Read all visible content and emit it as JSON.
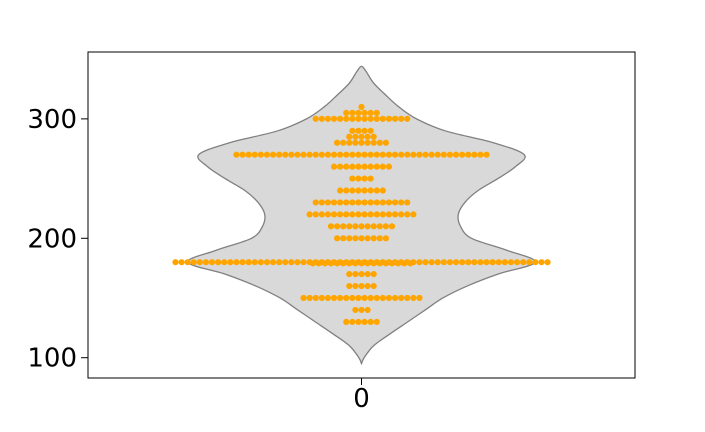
{
  "chart_data": {
    "type": "violin",
    "title": "",
    "xlabel": "",
    "ylabel": "",
    "categories": [
      "0"
    ],
    "y_ticks": [
      100,
      200,
      300
    ],
    "y_tick_labels": [
      "100",
      "200",
      "300"
    ],
    "ylim": [
      83,
      356
    ],
    "grid": false,
    "legend": "none",
    "colors": {
      "violin_fill": "#d9d9d9",
      "violin_edge": "#808080",
      "points": "#ffa500",
      "axes": "#000000"
    },
    "violin_profile": [
      {
        "y": 95,
        "half_width": 0.0
      },
      {
        "y": 100,
        "half_width": 0.012
      },
      {
        "y": 110,
        "half_width": 0.055
      },
      {
        "y": 120,
        "half_width": 0.13
      },
      {
        "y": 130,
        "half_width": 0.21
      },
      {
        "y": 140,
        "half_width": 0.29
      },
      {
        "y": 150,
        "half_width": 0.37
      },
      {
        "y": 160,
        "half_width": 0.48
      },
      {
        "y": 170,
        "half_width": 0.62
      },
      {
        "y": 180,
        "half_width": 0.79
      },
      {
        "y": 190,
        "half_width": 0.66
      },
      {
        "y": 200,
        "half_width": 0.5
      },
      {
        "y": 210,
        "half_width": 0.45
      },
      {
        "y": 220,
        "half_width": 0.44
      },
      {
        "y": 230,
        "half_width": 0.47
      },
      {
        "y": 240,
        "half_width": 0.53
      },
      {
        "y": 250,
        "half_width": 0.62
      },
      {
        "y": 260,
        "half_width": 0.7
      },
      {
        "y": 270,
        "half_width": 0.74
      },
      {
        "y": 280,
        "half_width": 0.6
      },
      {
        "y": 290,
        "half_width": 0.38
      },
      {
        "y": 300,
        "half_width": 0.25
      },
      {
        "y": 310,
        "half_width": 0.17
      },
      {
        "y": 320,
        "half_width": 0.11
      },
      {
        "y": 330,
        "half_width": 0.055
      },
      {
        "y": 340,
        "half_width": 0.02
      },
      {
        "y": 344,
        "half_width": 0.0
      }
    ],
    "swarm_rows": [
      {
        "y": 130,
        "count": 6
      },
      {
        "y": 140,
        "count": 3
      },
      {
        "y": 150,
        "count": 20
      },
      {
        "y": 160,
        "count": 5
      },
      {
        "y": 170,
        "count": 5
      },
      {
        "y": 179,
        "count": 17
      },
      {
        "y": 180,
        "count": 62
      },
      {
        "y": 200,
        "count": 9
      },
      {
        "y": 210,
        "count": 11
      },
      {
        "y": 220,
        "count": 18
      },
      {
        "y": 230,
        "count": 16
      },
      {
        "y": 240,
        "count": 8
      },
      {
        "y": 250,
        "count": 4
      },
      {
        "y": 260,
        "count": 10
      },
      {
        "y": 270,
        "count": 42
      },
      {
        "y": 280,
        "count": 9
      },
      {
        "y": 285,
        "count": 5
      },
      {
        "y": 290,
        "count": 4
      },
      {
        "y": 300,
        "count": 16
      },
      {
        "y": 305,
        "count": 6
      },
      {
        "y": 310,
        "count": 1
      }
    ]
  }
}
